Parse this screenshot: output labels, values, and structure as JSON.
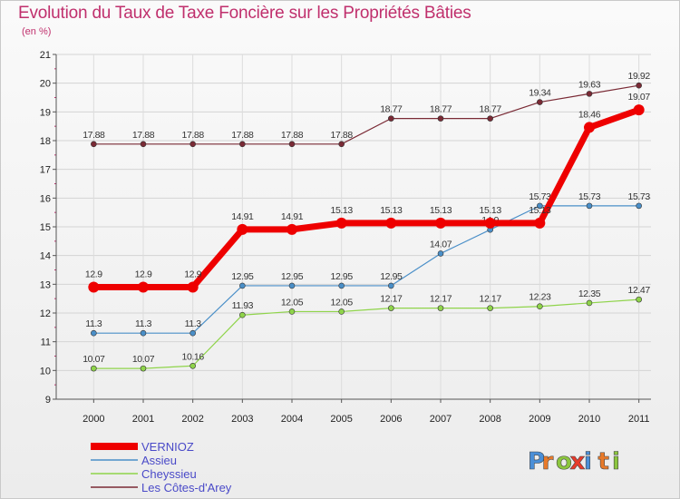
{
  "chart_data": {
    "type": "line",
    "title": "Evolution du Taux de Taxe Foncière sur les Propriétés Bâties",
    "subtitle": "(en %)",
    "xlabel": "",
    "ylabel": "",
    "ylim": [
      9,
      21
    ],
    "yticks": [
      9,
      10,
      11,
      12,
      13,
      14,
      15,
      16,
      17,
      18,
      19,
      20,
      21
    ],
    "categories": [
      "2000",
      "2001",
      "2002",
      "2003",
      "2004",
      "2005",
      "2006",
      "2007",
      "2008",
      "2009",
      "2010",
      "2011"
    ],
    "series": [
      {
        "name": "Les Côtes-d'Arey",
        "color": "#7a2a35",
        "values": [
          17.88,
          17.88,
          17.88,
          17.88,
          17.88,
          17.88,
          18.77,
          18.77,
          18.77,
          19.34,
          19.63,
          19.92
        ],
        "labels": [
          "17.88",
          "17.88",
          "17.88",
          "17.88",
          "17.88",
          "17.88",
          "18.77",
          "18.77",
          "18.77",
          "19.34",
          "19.63",
          "19.92"
        ]
      },
      {
        "name": "Assieu",
        "color": "#4a8fc8",
        "values": [
          11.3,
          11.3,
          11.3,
          12.95,
          12.95,
          12.95,
          12.95,
          14.07,
          14.9,
          15.73,
          15.73,
          15.73
        ],
        "labels": [
          "11.3",
          "11.3",
          "11.3",
          "12.95",
          "12.95",
          "12.95",
          "12.95",
          "14.07",
          "14.9",
          "15.73",
          "15.73",
          "15.73"
        ]
      },
      {
        "name": "Cheyssieu",
        "color": "#8fd44a",
        "values": [
          10.07,
          10.07,
          10.16,
          11.93,
          12.05,
          12.05,
          12.17,
          12.17,
          12.17,
          12.23,
          12.35,
          12.47
        ],
        "labels": [
          "10.07",
          "10.07",
          "10.16",
          "11.93",
          "12.05",
          "12.05",
          "12.17",
          "12.17",
          "12.17",
          "12.23",
          "12.35",
          "12.47"
        ]
      },
      {
        "name": "VERNIOZ",
        "color": "#ee0000",
        "values": [
          12.9,
          12.9,
          12.9,
          14.91,
          14.91,
          15.13,
          15.13,
          15.13,
          15.13,
          15.13,
          18.46,
          19.07
        ],
        "labels": [
          "12.9",
          "12.9",
          "12.9",
          "14.91",
          "14.91",
          "15.13",
          "15.13",
          "15.13",
          "15.13",
          "15.13",
          "18.46",
          "19.07"
        ]
      }
    ],
    "legend": {
      "position": "bottom-left",
      "entries": [
        "VERNIOZ",
        "Assieu",
        "Cheyssieu",
        "Les Côtes-d'Arey"
      ]
    }
  },
  "logo": {
    "letters": [
      "P",
      "r",
      "o",
      "x",
      "i",
      "t",
      "i"
    ],
    "colors": [
      "#4a8fd8",
      "#e87a2a",
      "#8cc63e",
      "#e83a2a",
      "#4a8fd8",
      "#e87a2a",
      "#8cc63e"
    ]
  }
}
